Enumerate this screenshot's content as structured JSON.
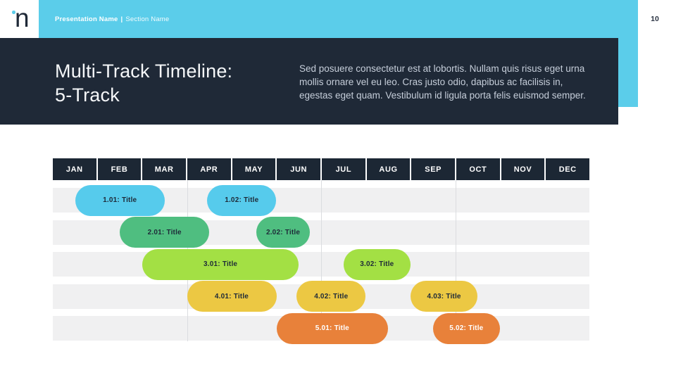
{
  "page": {
    "header": {
      "logo_letter": "n",
      "presentation_name": "Presentation Name",
      "divider": "|",
      "section_name": "Section Name",
      "page_number": "10"
    },
    "title_block": {
      "title_line1": "Multi-Track Timeline:",
      "title_line2": "5-Track",
      "body": "Sed posuere consectetur est at lobortis. Nullam quis risus eget urna mollis ornare vel eu leo. Cras justo odio, dapibus ac facilisis in, egestas eget quam. Vestibulum id ligula porta felis euismod semper."
    }
  },
  "colors": {
    "accent_cyan": "#5BCDEA",
    "navy_band": "#1F2937",
    "month_cell": "#1C2734",
    "row_band": "#F0F0F1",
    "gridline": "#DBDDE0"
  },
  "chart_data": {
    "type": "bar",
    "subtype": "gantt-timeline",
    "title": "Multi-Track Timeline: 5-Track",
    "months": [
      "JAN",
      "FEB",
      "MAR",
      "APR",
      "MAY",
      "JUN",
      "JUL",
      "AUG",
      "SEP",
      "OCT",
      "NOV",
      "DEC"
    ],
    "axis_range_months": [
      0,
      12
    ],
    "quarter_gridlines_at_months": [
      3,
      6,
      9
    ],
    "tracks": [
      {
        "name": "track-1",
        "color": "#56CBEC",
        "text_color": "#1E2A38",
        "bars": [
          {
            "label": "1.01: Title",
            "start_month": 0.5,
            "end_month": 2.5
          },
          {
            "label": "1.02: Title",
            "start_month": 3.45,
            "end_month": 5.0
          }
        ]
      },
      {
        "name": "track-2",
        "color": "#4FBE80",
        "text_color": "#1E2A38",
        "bars": [
          {
            "label": "2.01: Title",
            "start_month": 1.5,
            "end_month": 3.5
          },
          {
            "label": "2.02: Title",
            "start_month": 4.55,
            "end_month": 5.75
          }
        ]
      },
      {
        "name": "track-3",
        "color": "#A3E044",
        "text_color": "#1E2A38",
        "bars": [
          {
            "label": "3.01: Title",
            "start_month": 2.0,
            "end_month": 5.5
          },
          {
            "label": "3.02: Title",
            "start_month": 6.5,
            "end_month": 8.0
          }
        ]
      },
      {
        "name": "track-4",
        "color": "#ECC843",
        "text_color": "#1E2A38",
        "bars": [
          {
            "label": "4.01: Title",
            "start_month": 3.0,
            "end_month": 5.0
          },
          {
            "label": "4.02: Title",
            "start_month": 5.45,
            "end_month": 7.0
          },
          {
            "label": "4.03: Title",
            "start_month": 8.0,
            "end_month": 9.5
          }
        ]
      },
      {
        "name": "track-5",
        "color": "#E8813A",
        "text_color": "#FFFFFF",
        "bars": [
          {
            "label": "5.01: Title",
            "start_month": 5.0,
            "end_month": 7.5
          },
          {
            "label": "5.02: Title",
            "start_month": 8.5,
            "end_month": 10.0
          }
        ]
      }
    ]
  }
}
